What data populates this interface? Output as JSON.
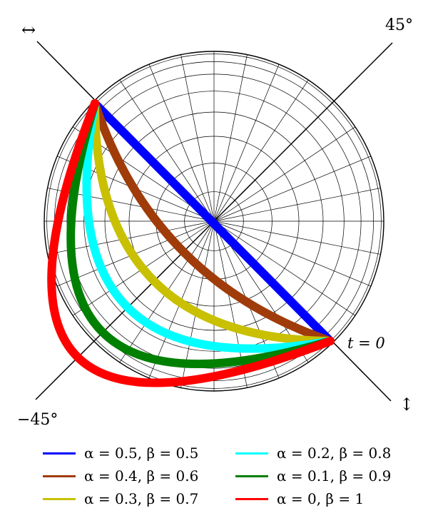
{
  "diagram": {
    "labels": {
      "top_left_arrow": "↔",
      "top_right_angle": "45°",
      "bottom_left_angle": "−45°",
      "bottom_right_arrow": "↕",
      "start_point": "t = 0"
    }
  },
  "legend": {
    "items": [
      {
        "label": "α = 0.5, β = 0.5",
        "color": "#0000ff"
      },
      {
        "label": "α = 0.4, β = 0.6",
        "color": "#a03c0a"
      },
      {
        "label": "α = 0.3, β = 0.7",
        "color": "#c8c000"
      },
      {
        "label": "α = 0.2, β = 0.8",
        "color": "#00ffff"
      },
      {
        "label": "α = 0.1, β = 0.9",
        "color": "#008000"
      },
      {
        "label": "α = 0, β = 1",
        "color": "#ff0000"
      }
    ]
  }
}
